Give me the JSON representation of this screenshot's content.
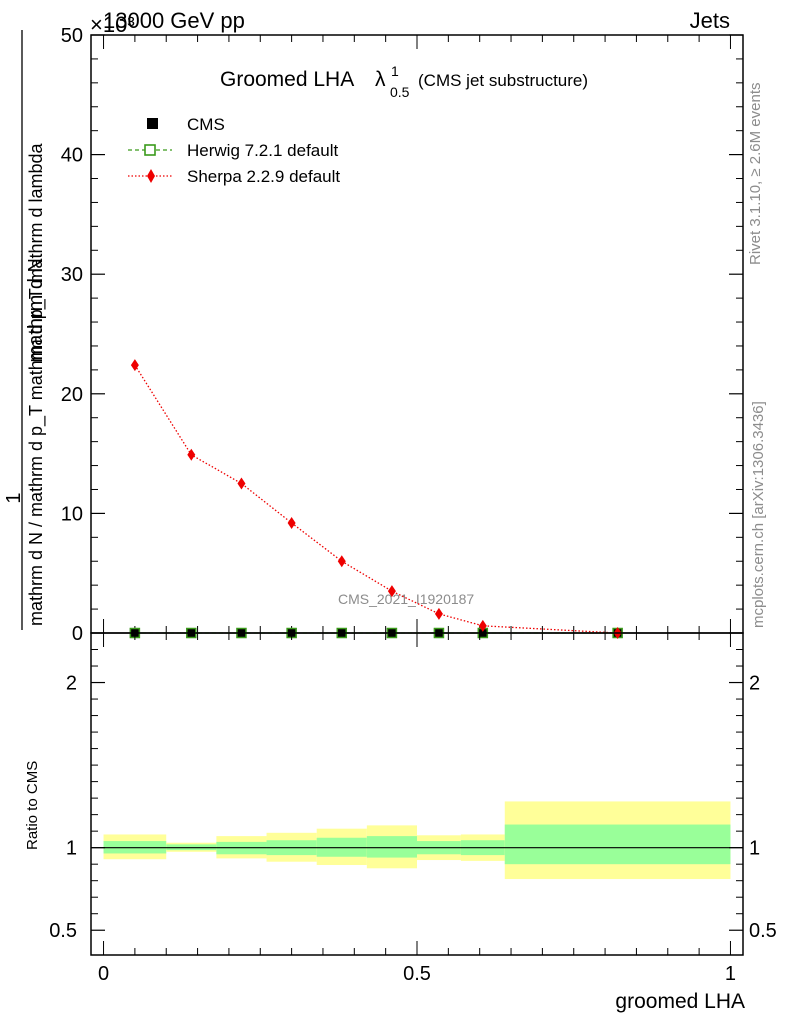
{
  "header": {
    "left": "13000 GeV pp",
    "right": "Jets",
    "exponent": "×10³"
  },
  "side_texts": {
    "rivet": "Rivet 3.1.10, ≥ 2.6M events",
    "mcplots": "mcplots.cern.ch [arXiv:1306.3436]"
  },
  "watermark": "CMS_2021_I1920187",
  "chart_data": [
    {
      "type": "line",
      "title": "Groomed LHA",
      "title_symbol": "λ",
      "title_sup": "1",
      "title_sub": "0.5",
      "subtitle": "(CMS jet substructure)",
      "ylabel_num": "1",
      "ylabel_frac_top": "mathrm d N",
      "ylabel_frac_bottom": "mathrm d N / mathrm d p_T mathrm d p_T mathrm d lambda",
      "ylim": [
        0,
        50
      ],
      "yticks": [
        "0",
        "10",
        "20",
        "30",
        "40",
        "50"
      ],
      "x": [
        0.05,
        0.14,
        0.22,
        0.3,
        0.38,
        0.46,
        0.535,
        0.605,
        0.82
      ],
      "series": [
        {
          "name": "CMS",
          "color": "#000000",
          "marker": "filled-square",
          "values": [
            0.0,
            0.0,
            0.0,
            0.0,
            0.0,
            0.0,
            0.0,
            0.0,
            0.0
          ]
        },
        {
          "name": "Herwig 7.2.1 default",
          "color": "#3a9a1a",
          "marker": "open-square",
          "line": "dashed",
          "values": [
            0.0,
            0.0,
            0.0,
            0.0,
            0.0,
            0.0,
            0.0,
            0.0,
            0.0
          ]
        },
        {
          "name": "Sherpa 2.2.9 default",
          "color": "#ee0000",
          "marker": "diamond",
          "line": "dotted",
          "values": [
            22.4,
            14.9,
            12.5,
            9.2,
            6.0,
            3.5,
            1.6,
            0.6,
            0.0
          ]
        }
      ]
    },
    {
      "type": "area",
      "ylabel": "Ratio to CMS",
      "xlabel": "groomed LHA",
      "ylim": [
        0.35,
        2.3
      ],
      "yticks": [
        "0.5",
        "1",
        "2"
      ],
      "xticks": [
        "0",
        "0.5",
        "1"
      ],
      "xlim": [
        -0.02,
        1.02
      ],
      "reference_line": 1,
      "bins": [
        {
          "x0": 0.0,
          "x1": 0.1,
          "inner": [
            0.965,
            1.04
          ],
          "outer": [
            0.93,
            1.08
          ]
        },
        {
          "x0": 0.1,
          "x1": 0.18,
          "inner": [
            0.985,
            1.02
          ],
          "outer": [
            0.975,
            1.03
          ]
        },
        {
          "x0": 0.18,
          "x1": 0.26,
          "inner": [
            0.96,
            1.035
          ],
          "outer": [
            0.935,
            1.07
          ]
        },
        {
          "x0": 0.26,
          "x1": 0.34,
          "inner": [
            0.955,
            1.045
          ],
          "outer": [
            0.915,
            1.09
          ]
        },
        {
          "x0": 0.34,
          "x1": 0.42,
          "inner": [
            0.945,
            1.06
          ],
          "outer": [
            0.895,
            1.115
          ]
        },
        {
          "x0": 0.42,
          "x1": 0.5,
          "inner": [
            0.94,
            1.07
          ],
          "outer": [
            0.875,
            1.135
          ]
        },
        {
          "x0": 0.5,
          "x1": 0.57,
          "inner": [
            0.96,
            1.04
          ],
          "outer": [
            0.925,
            1.075
          ]
        },
        {
          "x0": 0.57,
          "x1": 0.64,
          "inner": [
            0.955,
            1.045
          ],
          "outer": [
            0.92,
            1.08
          ]
        },
        {
          "x0": 0.64,
          "x1": 1.0,
          "inner": [
            0.9,
            1.14
          ],
          "outer": [
            0.81,
            1.28
          ]
        }
      ],
      "colors": {
        "inner": "#99ff99",
        "outer": "#ffff99"
      }
    }
  ]
}
